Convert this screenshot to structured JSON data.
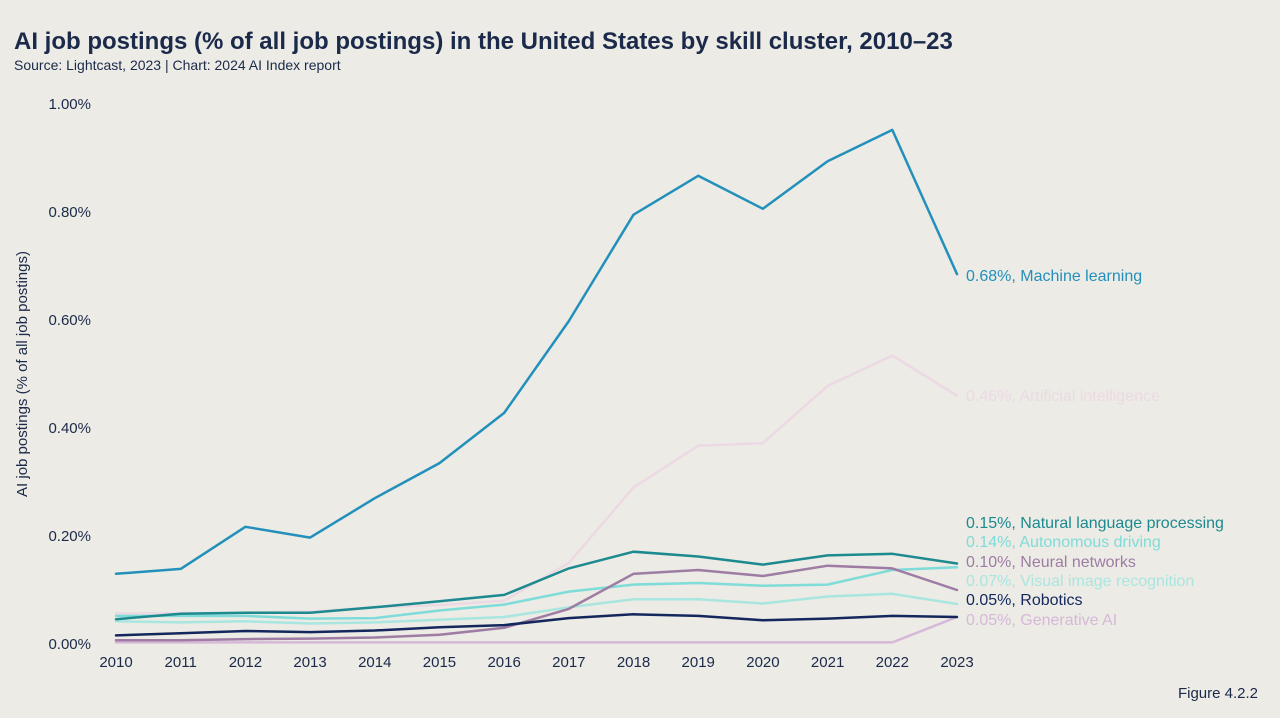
{
  "header": {
    "title": "AI job postings (% of all job postings) in the United States by skill cluster, 2010–23",
    "source": "Source: Lightcast, 2023 | Chart: 2024 AI Index report"
  },
  "figure_label": "Figure 4.2.2",
  "chart_data": {
    "type": "line",
    "title": "AI job postings (% of all job postings) in the United States by skill cluster, 2010–23",
    "xlabel": "",
    "ylabel": "AI job postings (% of all job postings)",
    "x": [
      2010,
      2011,
      2012,
      2013,
      2014,
      2015,
      2016,
      2017,
      2018,
      2019,
      2020,
      2021,
      2022,
      2023
    ],
    "ylim": [
      0,
      1.0
    ],
    "yticks": [
      0,
      0.2,
      0.4,
      0.6,
      0.8,
      1.0
    ],
    "ytick_labels": [
      "0.00%",
      "0.20%",
      "0.40%",
      "0.60%",
      "0.80%",
      "1.00%"
    ],
    "grid": false,
    "series": [
      {
        "name": "Artificial intelligence",
        "end_label": "0.46%, Artificial intelligence",
        "color": "#ecd9e4",
        "values": [
          0.057,
          0.057,
          0.058,
          0.06,
          0.068,
          0.072,
          0.08,
          0.15,
          0.29,
          0.367,
          0.372,
          0.478,
          0.534,
          0.46
        ]
      },
      {
        "name": "Visual image recognition",
        "end_label": "0.07%, Visual image recognition",
        "color": "#a9e6e0",
        "values": [
          0.042,
          0.04,
          0.042,
          0.038,
          0.04,
          0.045,
          0.05,
          0.068,
          0.083,
          0.083,
          0.075,
          0.088,
          0.093,
          0.074
        ]
      },
      {
        "name": "Autonomous driving",
        "end_label": "0.14%, Autonomous driving",
        "color": "#7fdcd8",
        "values": [
          0.052,
          0.052,
          0.052,
          0.047,
          0.048,
          0.062,
          0.073,
          0.097,
          0.11,
          0.113,
          0.108,
          0.11,
          0.137,
          0.142
        ]
      },
      {
        "name": "Generative AI",
        "end_label": "0.05%, Generative AI",
        "color": "#d6b8d8",
        "values": [
          0.003,
          0.003,
          0.003,
          0.003,
          0.003,
          0.003,
          0.003,
          0.003,
          0.003,
          0.003,
          0.003,
          0.003,
          0.003,
          0.05
        ]
      },
      {
        "name": "Neural networks",
        "end_label": "0.10%, Neural networks",
        "color": "#9e7ca4",
        "values": [
          0.007,
          0.007,
          0.009,
          0.01,
          0.012,
          0.017,
          0.03,
          0.065,
          0.13,
          0.137,
          0.126,
          0.145,
          0.14,
          0.1
        ]
      },
      {
        "name": "Robotics",
        "end_label": "0.05%, Robotics",
        "color": "#14275d",
        "values": [
          0.016,
          0.02,
          0.024,
          0.022,
          0.025,
          0.031,
          0.035,
          0.048,
          0.055,
          0.052,
          0.044,
          0.047,
          0.052,
          0.05
        ]
      },
      {
        "name": "Natural language processing",
        "end_label": "0.15%, Natural language processing",
        "color": "#1c8a8f",
        "values": [
          0.046,
          0.056,
          0.058,
          0.058,
          0.068,
          0.079,
          0.091,
          0.14,
          0.171,
          0.162,
          0.147,
          0.164,
          0.167,
          0.149
        ]
      },
      {
        "name": "Machine learning",
        "end_label": "0.68%, Machine learning",
        "color": "#2390bb",
        "values": [
          0.13,
          0.139,
          0.217,
          0.197,
          0.27,
          0.335,
          0.428,
          0.598,
          0.795,
          0.867,
          0.806,
          0.894,
          0.952,
          0.685
        ]
      }
    ]
  }
}
